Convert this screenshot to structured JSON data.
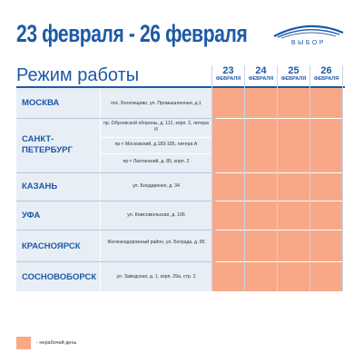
{
  "header": {
    "title": "23 февраля - 26 февраля",
    "logo_text": "ВЫБОР"
  },
  "schedule": {
    "title": "Режим работы",
    "columns": [
      {
        "day": "23",
        "month": "ФЕВРАЛЯ"
      },
      {
        "day": "24",
        "month": "ФЕВРАЛЯ"
      },
      {
        "day": "25",
        "month": "ФЕВРАЛЯ"
      },
      {
        "day": "26",
        "month": "ФЕВРАЛЯ"
      }
    ],
    "rows": [
      {
        "city": "МОСКВА",
        "addresses": [
          "пос. Богатищево, ул. Промышленная, д.1"
        ]
      },
      {
        "city": "САНКТ-ПЕТЕРБУРГ",
        "addresses": [
          "пр. Обуховской обороны, д. 112, корп. 2, литера И",
          "пр-т Московский, д.183-185, литера А",
          "пр-т Лахтинский, д. 85, корп. 2"
        ]
      },
      {
        "city": "КАЗАНЬ",
        "addresses": [
          "ул. Бондаренко, д. 34"
        ]
      },
      {
        "city": "УФА",
        "addresses": [
          "ул. Комсомольская, д. 106"
        ]
      },
      {
        "city": "КРАСНОЯРСК",
        "addresses": [
          "Железнодорожный район, ул. Боградa, д. 85"
        ]
      },
      {
        "city": "СОСНОВОБОРСК",
        "addresses": [
          "ул. Заводская, д. 1, корп. 29а, стр. 2"
        ]
      }
    ]
  },
  "legend": {
    "color": "#f8a887",
    "label": "- нерабочий день"
  }
}
